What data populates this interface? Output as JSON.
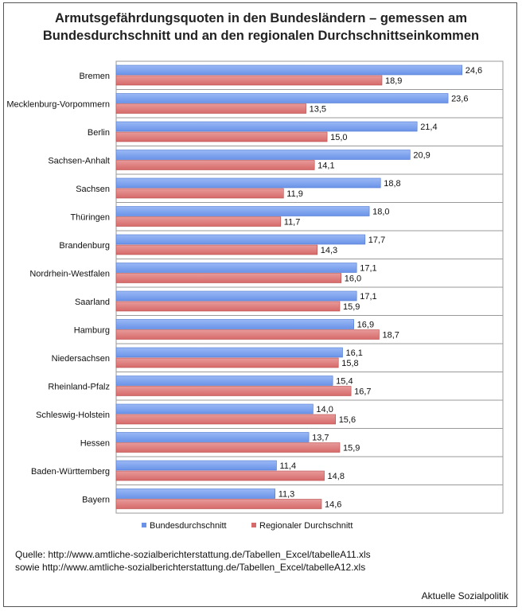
{
  "chart_data": {
    "type": "bar",
    "orientation": "horizontal",
    "title_line1": "Armutsgefährdungsquoten in den Bundesländern – gemessen am",
    "title_line2": "Bundesdurchschnitt und an den regionalen Durchschnittseinkommen",
    "categories": [
      "Bremen",
      "Mecklenburg-Vorpommern",
      "Berlin",
      "Sachsen-Anhalt",
      "Sachsen",
      "Thüringen",
      "Brandenburg",
      "Nordrhein-Westfalen",
      "Saarland",
      "Hamburg",
      "Niedersachsen",
      "Rheinland-Pfalz",
      "Schleswig-Holstein",
      "Hessen",
      "Baden-Württemberg",
      "Bayern"
    ],
    "series": [
      {
        "name": "Bundesdurchschnitt",
        "color": "#6a93e8",
        "values": [
          24.6,
          23.6,
          21.4,
          20.9,
          18.8,
          18.0,
          17.7,
          17.1,
          17.1,
          16.9,
          16.1,
          15.4,
          14.0,
          13.7,
          11.4,
          11.3
        ],
        "labels": [
          "24,6",
          "23,6",
          "21,4",
          "20,9",
          "18,8",
          "18,0",
          "17,7",
          "17,1",
          "17,1",
          "16,9",
          "16,1",
          "15,4",
          "14,0",
          "13,7",
          "11,4",
          "11,3"
        ]
      },
      {
        "name": "Regionaler Durchschnitt",
        "color": "#d66a6a",
        "values": [
          18.9,
          13.5,
          15.0,
          14.1,
          11.9,
          11.7,
          14.3,
          16.0,
          15.9,
          18.7,
          15.8,
          16.7,
          15.6,
          15.9,
          14.8,
          14.6
        ],
        "labels": [
          "18,9",
          "13,5",
          "15,0",
          "14,1",
          "11,9",
          "11,7",
          "14,3",
          "16,0",
          "15,9",
          "18,7",
          "15,8",
          "16,7",
          "15,6",
          "15,9",
          "14,8",
          "14,6"
        ]
      }
    ],
    "xlim": [
      0,
      27.5
    ],
    "grid": true,
    "legend_position": "bottom"
  },
  "footer": {
    "source_line1": "Quelle:  http://www.amtliche-sozialberichterstattung.de/Tabellen_Excel/tabelleA11.xls",
    "source_line2": "sowie  http://www.amtliche-sozialberichterstattung.de/Tabellen_Excel/tabelleA12.xls",
    "brand": "Aktuelle Sozialpolitik"
  }
}
